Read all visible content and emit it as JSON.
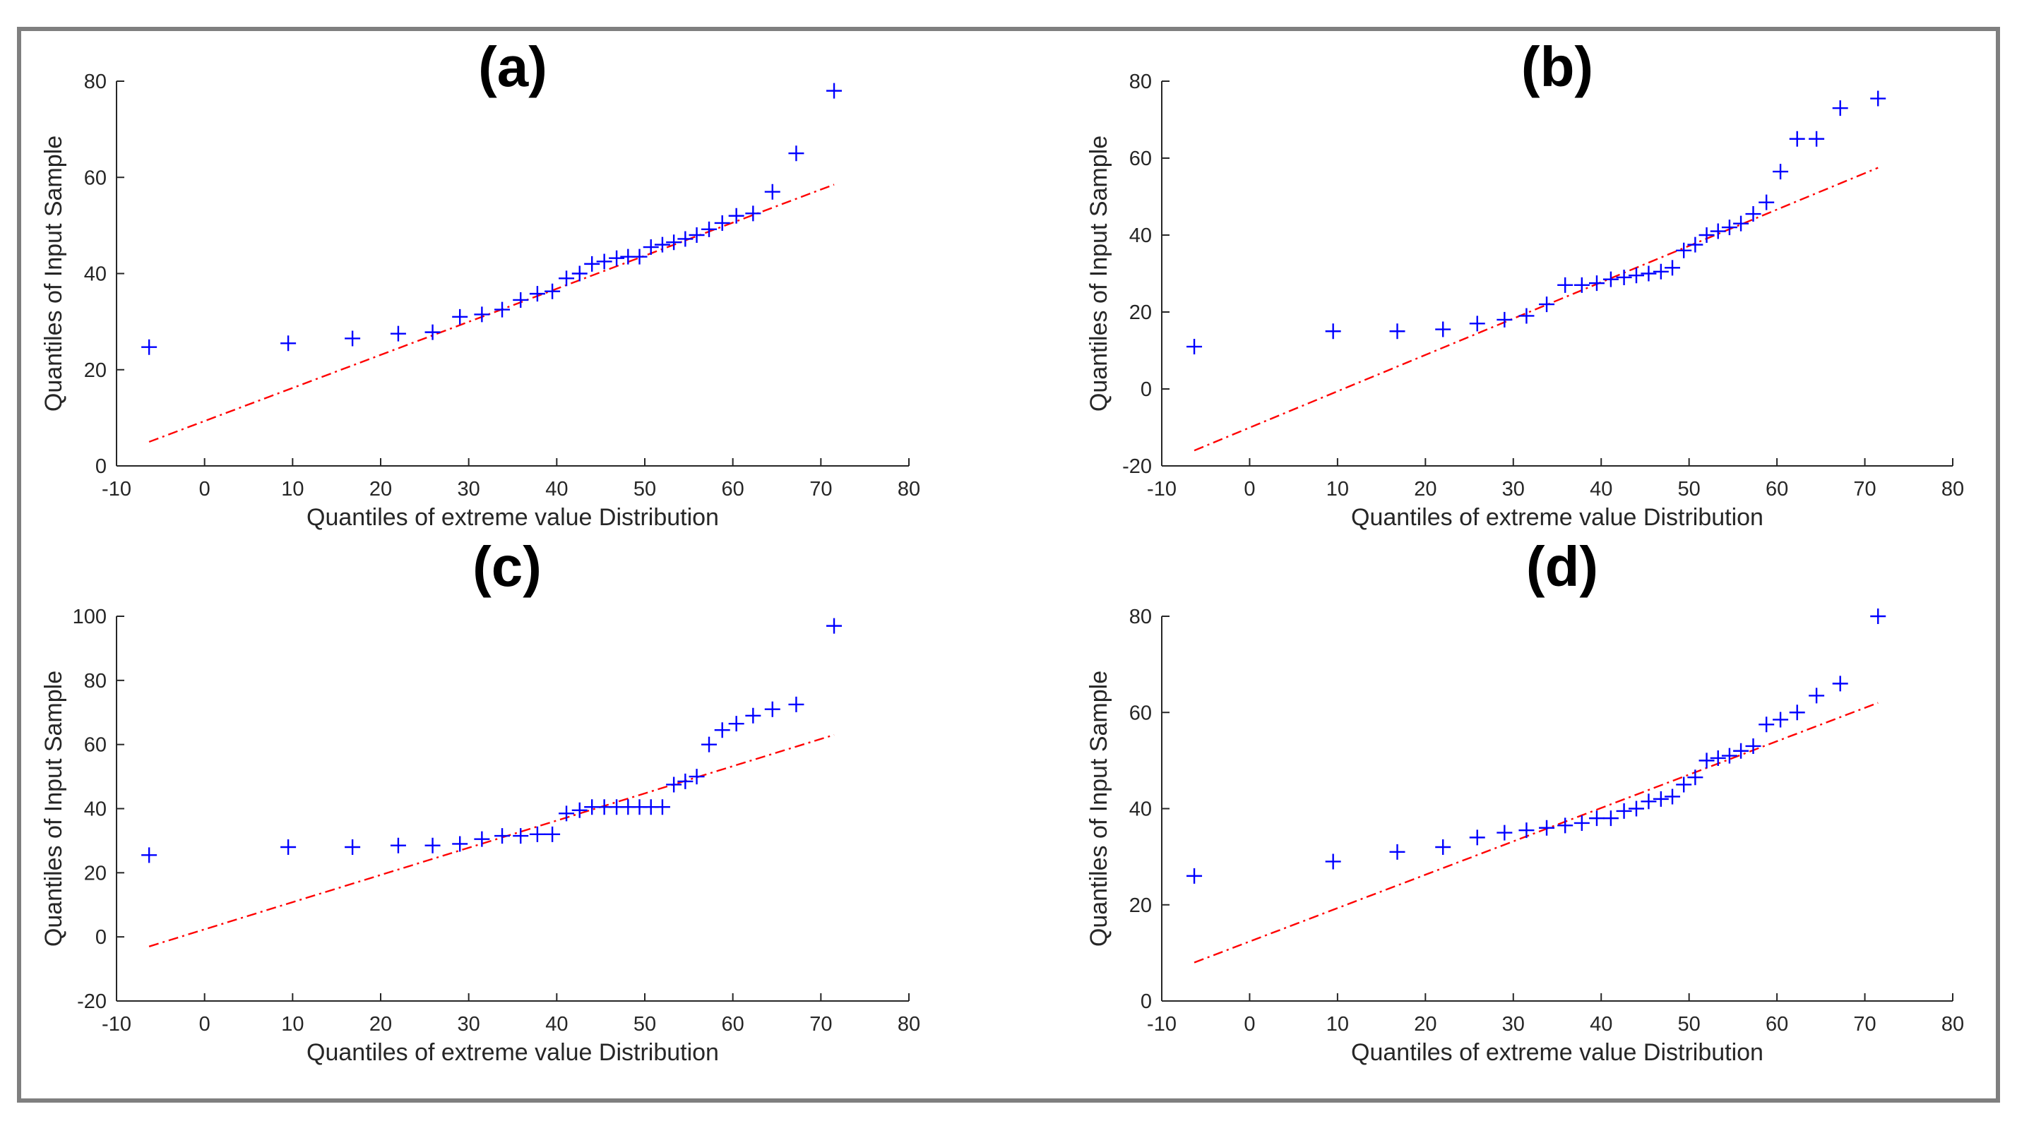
{
  "figure": {
    "panel_labels": [
      "(a)",
      "(b)",
      "(c)",
      "(d)"
    ]
  },
  "colors": {
    "marker": "#0000ff",
    "reference_line": "#ff0000",
    "axis": "#262626",
    "frame": "#7f7f7f"
  },
  "chart_data": [
    {
      "type": "scatter",
      "panel_label": "(a)",
      "title": "(a)",
      "xlabel": "Quantiles of extreme value Distribution",
      "ylabel": "Quantiles of Input Sample",
      "xlim": [
        -10,
        80
      ],
      "ylim": [
        0,
        80
      ],
      "xticks": [
        -10,
        0,
        10,
        20,
        30,
        40,
        50,
        60,
        70,
        80
      ],
      "yticks": [
        0,
        20,
        40,
        60,
        80
      ],
      "grid": false,
      "series": [
        {
          "name": "sample quantiles",
          "marker": "+",
          "x": [
            -6.3,
            9.5,
            16.8,
            22.0,
            25.9,
            29.0,
            31.5,
            33.8,
            35.9,
            37.8,
            39.5,
            41.1,
            42.6,
            44.0,
            45.4,
            46.8,
            48.1,
            49.4,
            50.7,
            52.0,
            53.3,
            54.6,
            55.9,
            57.3,
            58.8,
            60.4,
            62.3,
            64.5,
            67.2,
            71.5
          ],
          "y": [
            24.7,
            25.5,
            26.5,
            27.5,
            27.8,
            31.0,
            31.5,
            32.5,
            34.5,
            35.8,
            36.3,
            39.0,
            40.0,
            42.0,
            42.5,
            43.2,
            43.5,
            43.5,
            45.5,
            46.0,
            46.5,
            47.2,
            48.0,
            49.2,
            50.5,
            52.0,
            52.5,
            57.0,
            65.0,
            78.0
          ]
        },
        {
          "name": "reference line",
          "type": "line",
          "x": [
            -6.3,
            71.5
          ],
          "y": [
            5.0,
            58.5
          ]
        }
      ]
    },
    {
      "type": "scatter",
      "panel_label": "(b)",
      "title": "(b)",
      "xlabel": "Quantiles of extreme value Distribution",
      "ylabel": "Quantiles of Input Sample",
      "xlim": [
        -10,
        80
      ],
      "ylim": [
        -20,
        80
      ],
      "xticks": [
        -10,
        0,
        10,
        20,
        30,
        40,
        50,
        60,
        70,
        80
      ],
      "yticks": [
        -20,
        0,
        20,
        40,
        60,
        80
      ],
      "grid": false,
      "series": [
        {
          "name": "sample quantiles",
          "marker": "+",
          "x": [
            -6.3,
            9.5,
            16.8,
            22.0,
            25.9,
            29.0,
            31.5,
            33.8,
            35.9,
            37.8,
            39.5,
            41.1,
            42.6,
            44.0,
            45.4,
            46.8,
            48.1,
            49.4,
            50.7,
            52.0,
            53.3,
            54.6,
            55.9,
            57.3,
            58.8,
            60.4,
            62.3,
            64.5,
            67.2,
            71.5
          ],
          "y": [
            11.0,
            15.0,
            15.0,
            15.5,
            17.0,
            18.0,
            19.0,
            22.0,
            27.0,
            27.0,
            27.5,
            28.5,
            29.0,
            29.5,
            30.0,
            30.5,
            31.5,
            36.0,
            37.5,
            40.0,
            41.0,
            42.0,
            43.0,
            45.5,
            48.5,
            56.5,
            65.0,
            65.0,
            73.0,
            75.5
          ]
        },
        {
          "name": "reference line",
          "type": "line",
          "x": [
            -6.3,
            71.5
          ],
          "y": [
            -16.0,
            57.5
          ]
        }
      ]
    },
    {
      "type": "scatter",
      "panel_label": "(c)",
      "title": "(c)",
      "xlabel": "Quantiles of extreme value Distribution",
      "ylabel": "Quantiles of Input Sample",
      "xlim": [
        -10,
        80
      ],
      "ylim": [
        -20,
        100
      ],
      "xticks": [
        -10,
        0,
        10,
        20,
        30,
        40,
        50,
        60,
        70,
        80
      ],
      "yticks": [
        -20,
        0,
        20,
        40,
        60,
        80,
        100
      ],
      "grid": false,
      "series": [
        {
          "name": "sample quantiles",
          "marker": "+",
          "x": [
            -6.3,
            9.5,
            16.8,
            22.0,
            25.9,
            29.0,
            31.5,
            33.8,
            35.9,
            37.8,
            39.5,
            41.1,
            42.6,
            44.0,
            45.4,
            46.8,
            48.1,
            49.4,
            50.7,
            52.0,
            53.3,
            54.6,
            55.9,
            57.3,
            58.8,
            60.4,
            62.3,
            64.5,
            67.2,
            71.5
          ],
          "y": [
            25.5,
            28.0,
            28.0,
            28.5,
            28.5,
            29.0,
            30.5,
            31.5,
            31.5,
            32.0,
            32.0,
            38.5,
            39.5,
            40.5,
            40.5,
            40.5,
            40.5,
            40.5,
            40.5,
            40.5,
            47.5,
            48.5,
            50.0,
            60.0,
            64.5,
            66.5,
            69.0,
            71.0,
            72.5,
            97.0
          ]
        },
        {
          "name": "reference line",
          "type": "line",
          "x": [
            -6.3,
            71.5
          ],
          "y": [
            -3.0,
            63.0
          ]
        }
      ]
    },
    {
      "type": "scatter",
      "panel_label": "(d)",
      "title": "(d)",
      "xlabel": "Quantiles of extreme value Distribution",
      "ylabel": "Quantiles of Input Sample",
      "xlim": [
        -10,
        80
      ],
      "ylim": [
        0,
        80
      ],
      "xticks": [
        -10,
        0,
        10,
        20,
        30,
        40,
        50,
        60,
        70,
        80
      ],
      "yticks": [
        0,
        20,
        40,
        60,
        80
      ],
      "grid": false,
      "series": [
        {
          "name": "sample quantiles",
          "marker": "+",
          "x": [
            -6.3,
            9.5,
            16.8,
            22.0,
            25.9,
            29.0,
            31.5,
            33.8,
            35.9,
            37.8,
            39.5,
            41.1,
            42.6,
            44.0,
            45.4,
            46.8,
            48.1,
            49.4,
            50.7,
            52.0,
            53.3,
            54.6,
            55.9,
            57.3,
            58.8,
            60.4,
            62.3,
            64.5,
            67.2,
            71.5
          ],
          "y": [
            26.0,
            29.0,
            31.0,
            32.0,
            34.0,
            35.0,
            35.5,
            36.0,
            36.5,
            37.0,
            38.0,
            38.0,
            39.5,
            40.0,
            41.5,
            42.0,
            42.5,
            45.0,
            46.5,
            50.0,
            50.5,
            51.0,
            52.0,
            53.0,
            57.5,
            58.5,
            60.0,
            63.5,
            66.0,
            80.0
          ]
        },
        {
          "name": "reference line",
          "type": "line",
          "x": [
            -6.3,
            71.5
          ],
          "y": [
            8.0,
            62.0
          ]
        }
      ]
    }
  ]
}
